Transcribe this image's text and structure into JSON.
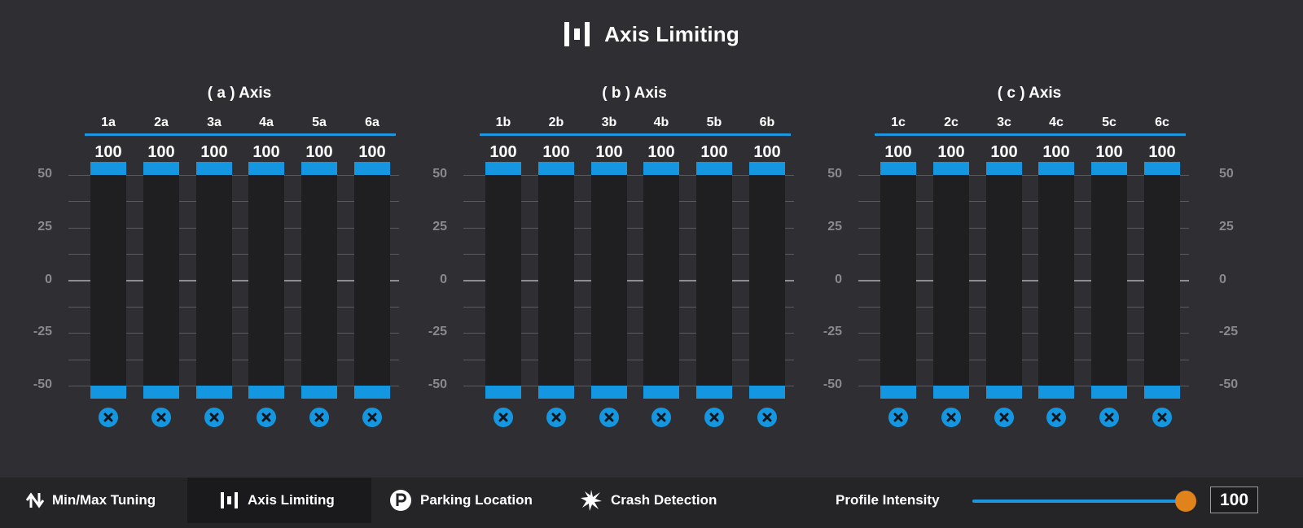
{
  "header": {
    "title": "Axis Limiting",
    "icon": "axis-limiting-icon"
  },
  "scale": {
    "ticks": [
      "50",
      "25",
      "0",
      "-25",
      "-50"
    ],
    "min": -50,
    "max": 50
  },
  "groups": [
    {
      "title": "( a ) Axis",
      "columns": [
        {
          "label": "1a",
          "value": "100",
          "upper": 50,
          "lower": -50
        },
        {
          "label": "2a",
          "value": "100",
          "upper": 50,
          "lower": -50
        },
        {
          "label": "3a",
          "value": "100",
          "upper": 50,
          "lower": -50
        },
        {
          "label": "4a",
          "value": "100",
          "upper": 50,
          "lower": -50
        },
        {
          "label": "5a",
          "value": "100",
          "upper": 50,
          "lower": -50
        },
        {
          "label": "6a",
          "value": "100",
          "upper": 50,
          "lower": -50
        }
      ]
    },
    {
      "title": "( b ) Axis",
      "columns": [
        {
          "label": "1b",
          "value": "100",
          "upper": 50,
          "lower": -50
        },
        {
          "label": "2b",
          "value": "100",
          "upper": 50,
          "lower": -50
        },
        {
          "label": "3b",
          "value": "100",
          "upper": 50,
          "lower": -50
        },
        {
          "label": "4b",
          "value": "100",
          "upper": 50,
          "lower": -50
        },
        {
          "label": "5b",
          "value": "100",
          "upper": 50,
          "lower": -50
        },
        {
          "label": "6b",
          "value": "100",
          "upper": 50,
          "lower": -50
        }
      ]
    },
    {
      "title": "( c ) Axis",
      "columns": [
        {
          "label": "1c",
          "value": "100",
          "upper": 50,
          "lower": -50
        },
        {
          "label": "2c",
          "value": "100",
          "upper": 50,
          "lower": -50
        },
        {
          "label": "3c",
          "value": "100",
          "upper": 50,
          "lower": -50
        },
        {
          "label": "4c",
          "value": "100",
          "upper": 50,
          "lower": -50
        },
        {
          "label": "5c",
          "value": "100",
          "upper": 50,
          "lower": -50
        },
        {
          "label": "6c",
          "value": "100",
          "upper": 50,
          "lower": -50
        }
      ]
    }
  ],
  "footer": {
    "tabs": [
      {
        "label": "Min/Max Tuning",
        "icon": "up-down-arrows-icon",
        "active": false
      },
      {
        "label": "Axis Limiting",
        "icon": "axis-limiting-icon",
        "active": true
      },
      {
        "label": "Parking Location",
        "icon": "parking-icon",
        "active": false
      },
      {
        "label": "Crash Detection",
        "icon": "crash-burst-icon",
        "active": false
      }
    ],
    "intensity": {
      "label": "Profile Intensity",
      "value": "100",
      "percent": 100
    }
  },
  "colors": {
    "accent": "#1497e0",
    "background": "#2f2f33",
    "footer": "#252527",
    "slider_thumb": "#e0831a",
    "track": "#1f1f21"
  }
}
